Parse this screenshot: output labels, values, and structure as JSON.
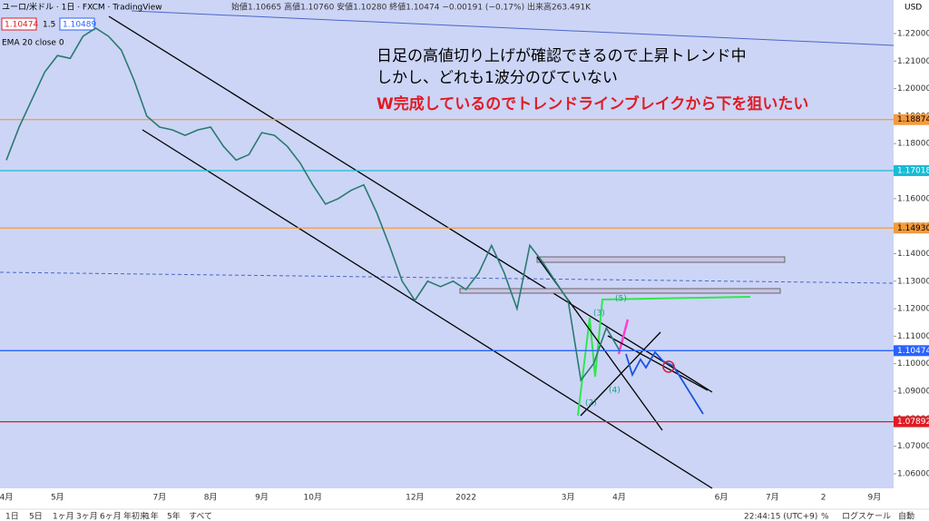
{
  "header": {
    "symbol": "ユーロ/米ドル · 1日 · FXCM · TradingView",
    "ohlc": "始値1.10665 高値1.10760 安値1.10280 終値1.10474 −0.00191 (−0.17%) 出来高263.491K",
    "bid": "1.10474",
    "spread": "1.5",
    "ask": "1.10489",
    "indicator": "EMA 20 close 0",
    "currency": "USD"
  },
  "toolbar": {
    "ranges": [
      "1日",
      "5日",
      "1ヶ月",
      "3ヶ月",
      "6ヶ月",
      "年初来",
      "1年",
      "5年",
      "すべて"
    ],
    "clock": "22:44:15 (UTC+9)",
    "options": [
      "%",
      "ログスケール",
      "自動"
    ]
  },
  "chart_data": {
    "type": "line",
    "annotations": [
      "日足の高値切り上げが確認できるので上昇トレンド中",
      "しかし、どれも1波分のびていない",
      "W完成しているのでトレンドラインブレイクから下を狙いたい"
    ],
    "waves": [
      "(5)",
      "(3)",
      "(4)",
      "(2)"
    ],
    "categories": [
      "4月",
      null,
      null,
      null,
      "5月",
      null,
      null,
      null,
      null,
      null,
      null,
      null,
      "7月",
      null,
      null,
      null,
      "8月",
      null,
      null,
      null,
      "9月",
      null,
      null,
      null,
      "10月",
      null,
      null,
      null,
      null,
      null,
      null,
      null,
      "12月",
      null,
      null,
      null,
      "2022",
      null,
      null,
      null,
      null,
      null,
      null,
      null,
      "3月",
      null,
      null,
      null,
      "4月",
      null,
      null,
      null,
      null,
      null,
      null,
      null,
      "6月",
      null,
      null,
      null,
      "7月",
      null,
      null,
      null,
      "2",
      null,
      null,
      null,
      "9月",
      null
    ],
    "series": [
      {
        "name": "EUR/USD",
        "color": "#2a7a6f",
        "values": [
          1.174,
          1.186,
          1.196,
          1.206,
          1.212,
          1.211,
          1.219,
          1.222,
          1.219,
          1.214,
          1.203,
          1.19,
          1.186,
          1.185,
          1.183,
          1.185,
          1.186,
          1.179,
          1.174,
          1.176,
          1.184,
          1.183,
          1.179,
          1.173,
          1.165,
          1.158,
          1.16,
          1.163,
          1.165,
          1.155,
          1.143,
          1.13,
          1.123,
          1.13,
          1.128,
          1.13,
          1.127,
          1.133,
          1.143,
          1.133,
          1.12,
          1.143,
          1.137,
          1.13,
          1.123,
          1.094,
          1.1,
          1.113,
          1.105,
          null,
          null,
          null,
          null,
          null,
          null,
          null,
          null,
          null,
          null,
          null,
          null,
          null,
          null,
          null,
          null,
          null,
          null,
          null,
          null,
          null
        ]
      }
    ],
    "levels": [
      {
        "value": 1.18874,
        "color": "#f59a3d"
      },
      {
        "value": 1.17018,
        "color": "#17bcd6"
      },
      {
        "value": 1.1493,
        "label": "1.14930",
        "color": "#f59a3d"
      },
      {
        "value": 1.10474,
        "color": "#2962ff"
      },
      {
        "value": 1.07892,
        "color": "#e01b24"
      }
    ],
    "ylim": [
      1.0547,
      1.2322
    ],
    "yticks": [
      {
        "value": 1.06,
        "label": "1.06000"
      },
      {
        "value": 1.07,
        "label": "1.07000"
      },
      {
        "value": 1.08,
        "label": "1.08000"
      },
      {
        "value": 1.09,
        "label": "1.09000"
      },
      {
        "value": 1.1,
        "label": "1.10000"
      },
      {
        "value": 1.11,
        "label": "1.11000"
      },
      {
        "value": 1.12,
        "label": "1.12000"
      },
      {
        "value": 1.13,
        "label": "1.13000"
      },
      {
        "value": 1.14,
        "label": "1.14000"
      },
      {
        "value": 1.15,
        "label": "1.15000"
      },
      {
        "value": 1.16,
        "label": "1.16000"
      },
      {
        "value": 1.17,
        "label": "1.17000"
      },
      {
        "value": 1.18,
        "label": "1.18000"
      },
      {
        "value": 1.19,
        "label": "1.19000"
      },
      {
        "value": 1.2,
        "label": "1.20000"
      },
      {
        "value": 1.21,
        "label": "1.21000"
      },
      {
        "value": 1.22,
        "label": "1.22000"
      }
    ]
  }
}
